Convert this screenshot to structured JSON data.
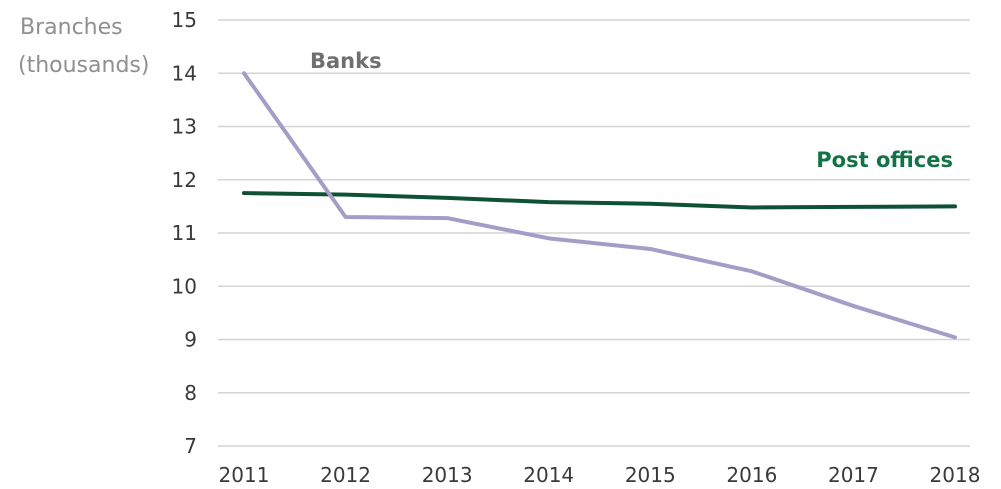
{
  "chart_data": {
    "type": "line",
    "ylabel_lines": [
      "Branches",
      "(thousands)"
    ],
    "x": [
      2011,
      2012,
      2013,
      2014,
      2015,
      2016,
      2017,
      2018
    ],
    "ylim": [
      7,
      15
    ],
    "yticks": [
      7,
      8,
      9,
      10,
      11,
      12,
      13,
      14,
      15
    ],
    "grid": true,
    "series": [
      {
        "name": "Banks",
        "color": "#a39dc8",
        "values": [
          14.0,
          11.3,
          11.28,
          10.9,
          10.7,
          10.28,
          9.63,
          9.04
        ]
      },
      {
        "name": "Post offices",
        "color": "#0f5135",
        "label_color": "#137346",
        "values": [
          11.75,
          11.72,
          11.66,
          11.58,
          11.55,
          11.48,
          11.49,
          11.5
        ]
      }
    ]
  }
}
